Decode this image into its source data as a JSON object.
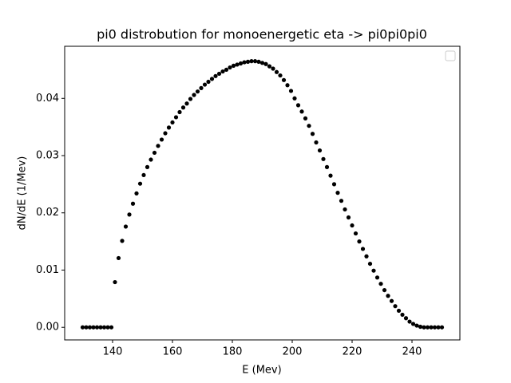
{
  "chart_data": {
    "type": "scatter",
    "title": "pi0 distrobution for monoenergetic eta -> pi0pi0pi0",
    "x_label": "E (Mev)",
    "y_label": "dN/dE (1/Mev)",
    "color": "#000000",
    "x": [
      130,
      131.2,
      132.4,
      133.6,
      134.8,
      136,
      137.2,
      138.4,
      139.6,
      140.8,
      142,
      143.2,
      144.4,
      145.6,
      146.8,
      148,
      149.2,
      150.4,
      151.6,
      152.8,
      154,
      155.2,
      156.4,
      157.6,
      158.8,
      160,
      161.2,
      162.4,
      163.6,
      164.8,
      166,
      167.2,
      168.4,
      169.6,
      170.8,
      172,
      173.2,
      174.4,
      175.6,
      176.8,
      178,
      179.2,
      180.4,
      181.6,
      182.8,
      184,
      185.2,
      186.4,
      187.6,
      188.8,
      190,
      191.2,
      192.4,
      193.6,
      194.8,
      196,
      197.2,
      198.4,
      199.6,
      200.8,
      202,
      203.2,
      204.4,
      205.6,
      206.8,
      208,
      209.2,
      210.4,
      211.6,
      212.8,
      214,
      215.2,
      216.4,
      217.6,
      218.8,
      220,
      221.2,
      222.4,
      223.6,
      224.8,
      226,
      227.2,
      228.4,
      229.6,
      230.8,
      232,
      233.2,
      234.4,
      235.6,
      236.8,
      238,
      239.2,
      240.4,
      241.6,
      242.8,
      244,
      245.2,
      246.4,
      247.6,
      248.8,
      250
    ],
    "values": [
      0,
      0,
      0,
      0,
      0,
      0,
      0,
      0,
      0,
      0.0079,
      0.0121,
      0.0151,
      0.0176,
      0.0197,
      0.0216,
      0.0234,
      0.0251,
      0.0266,
      0.028,
      0.0293,
      0.0305,
      0.0317,
      0.0328,
      0.0339,
      0.0349,
      0.0358,
      0.0367,
      0.0376,
      0.0384,
      0.0391,
      0.0399,
      0.0406,
      0.0412,
      0.0418,
      0.0424,
      0.0429,
      0.0434,
      0.0439,
      0.0443,
      0.0447,
      0.045,
      0.0454,
      0.0457,
      0.0459,
      0.0461,
      0.0463,
      0.0464,
      0.0465,
      0.0465,
      0.0464,
      0.0462,
      0.046,
      0.0456,
      0.0452,
      0.0446,
      0.044,
      0.0432,
      0.0423,
      0.0413,
      0.04,
      0.0388,
      0.0377,
      0.0365,
      0.0352,
      0.0338,
      0.0323,
      0.0309,
      0.0294,
      0.028,
      0.0265,
      0.025,
      0.0235,
      0.0221,
      0.0206,
      0.0192,
      0.0178,
      0.0164,
      0.015,
      0.0137,
      0.0124,
      0.0111,
      0.0099,
      0.0087,
      0.0076,
      0.0065,
      0.0055,
      0.0046,
      0.0037,
      0.0029,
      0.0022,
      0.0016,
      0.001,
      0.0006,
      0.0003,
      0.0001,
      0,
      0,
      0,
      0,
      0,
      0
    ],
    "xlim": [
      124,
      256
    ],
    "xticks": [
      140,
      160,
      180,
      200,
      220,
      240
    ],
    "ylim": [
      -0.0022,
      0.0491
    ],
    "yticks": [
      {
        "value": 0,
        "label": "0.00"
      },
      {
        "value": 0.01,
        "label": "0.01"
      },
      {
        "value": 0.02,
        "label": "0.02"
      },
      {
        "value": 0.03,
        "label": "0.03"
      },
      {
        "value": 0.04,
        "label": "0.04"
      }
    ]
  }
}
